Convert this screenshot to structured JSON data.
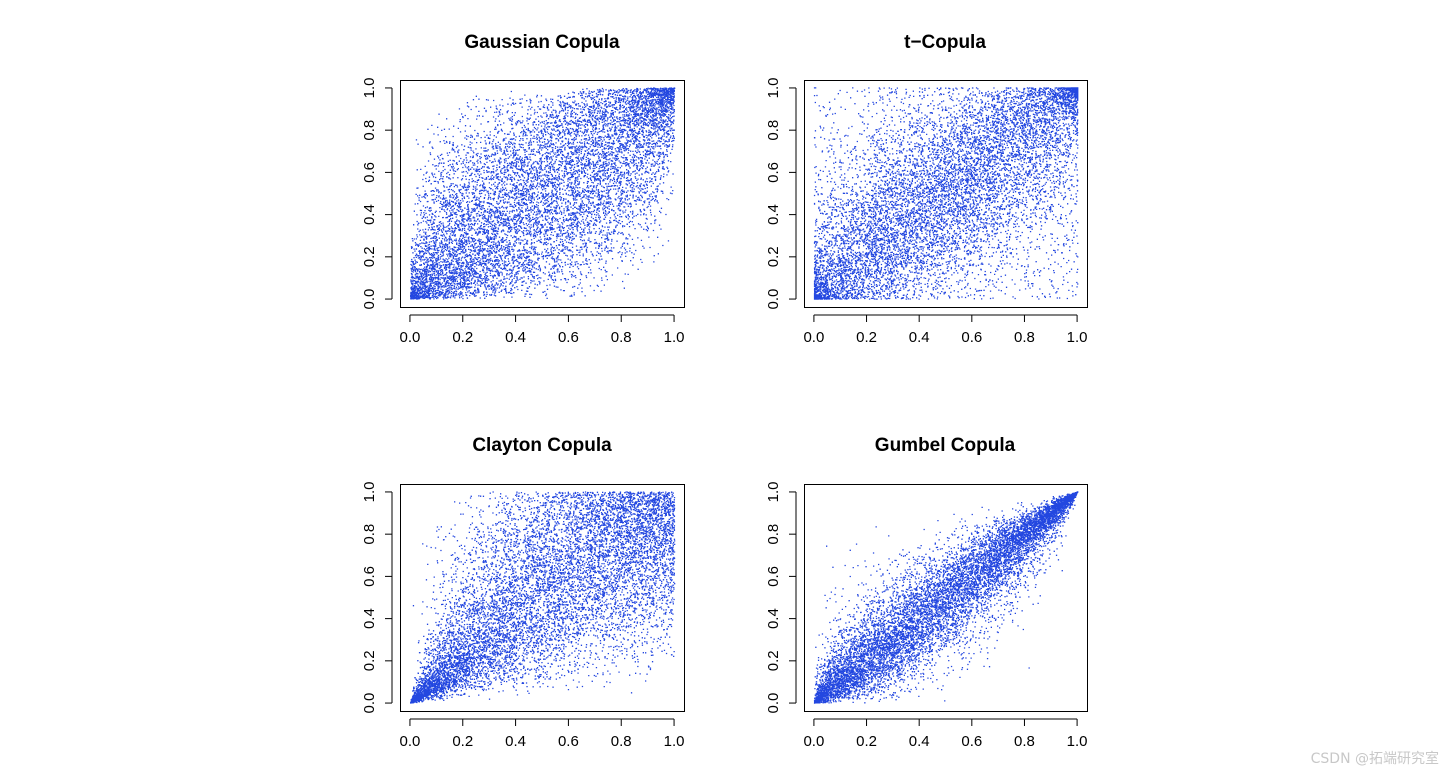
{
  "watermark": "CSDN @拓端研究室",
  "chart_data": [
    {
      "type": "scatter",
      "title": "Gaussian Copula",
      "xlabel": "",
      "ylabel": "",
      "xlim": [
        0,
        1
      ],
      "ylim": [
        0,
        1
      ],
      "x_ticks": [
        "0.0",
        "0.2",
        "0.4",
        "0.6",
        "0.8",
        "1.0"
      ],
      "y_ticks": [
        "0.0",
        "0.2",
        "0.4",
        "0.6",
        "0.8",
        "1.0"
      ],
      "grid": false,
      "legend": "none",
      "point_color": "#2347e0",
      "n_points": 10000,
      "dependence": "gaussian"
    },
    {
      "type": "scatter",
      "title": "t−Copula",
      "xlabel": "",
      "ylabel": "",
      "xlim": [
        0,
        1
      ],
      "ylim": [
        0,
        1
      ],
      "x_ticks": [
        "0.0",
        "0.2",
        "0.4",
        "0.6",
        "0.8",
        "1.0"
      ],
      "y_ticks": [
        "0.0",
        "0.2",
        "0.4",
        "0.6",
        "0.8",
        "1.0"
      ],
      "grid": false,
      "legend": "none",
      "point_color": "#2347e0",
      "n_points": 10000,
      "dependence": "t"
    },
    {
      "type": "scatter",
      "title": "Clayton Copula",
      "xlabel": "",
      "ylabel": "",
      "xlim": [
        0,
        1
      ],
      "ylim": [
        0,
        1
      ],
      "x_ticks": [
        "0.0",
        "0.2",
        "0.4",
        "0.6",
        "0.8",
        "1.0"
      ],
      "y_ticks": [
        "0.0",
        "0.2",
        "0.4",
        "0.6",
        "0.8",
        "1.0"
      ],
      "grid": false,
      "legend": "none",
      "point_color": "#2347e0",
      "n_points": 10000,
      "dependence": "clayton"
    },
    {
      "type": "scatter",
      "title": "Gumbel Copula",
      "xlabel": "",
      "ylabel": "",
      "xlim": [
        0,
        1
      ],
      "ylim": [
        0,
        1
      ],
      "x_ticks": [
        "0.0",
        "0.2",
        "0.4",
        "0.6",
        "0.8",
        "1.0"
      ],
      "y_ticks": [
        "0.0",
        "0.2",
        "0.4",
        "0.6",
        "0.8",
        "1.0"
      ],
      "grid": false,
      "legend": "none",
      "point_color": "#2347e0",
      "n_points": 10000,
      "dependence": "gumbel"
    }
  ]
}
